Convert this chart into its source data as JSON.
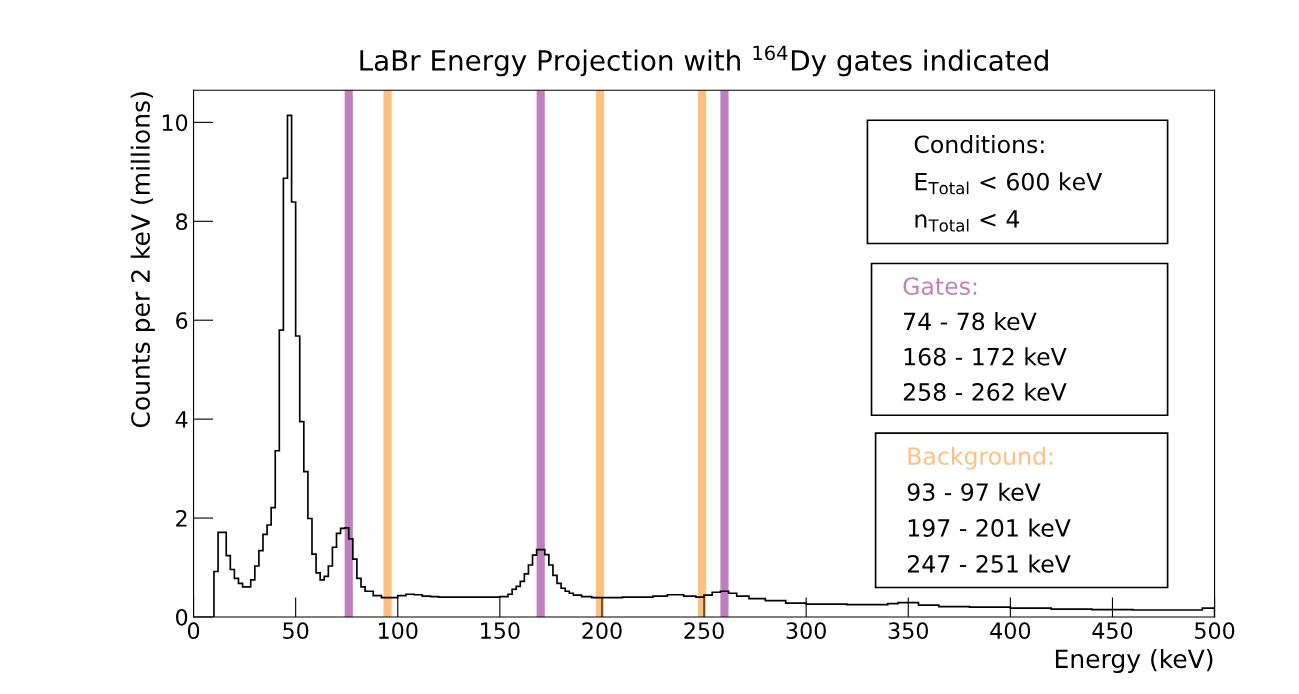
{
  "chart_data": {
    "type": "histogram",
    "title": "LaBr Energy Projection with $^{164}$Dy gates indicated",
    "xlabel": "Energy (keV)",
    "ylabel": "Counts per 2 keV (millions)",
    "bins": [
      10,
      12,
      14,
      16,
      18,
      20,
      22,
      24,
      26,
      28,
      30,
      32,
      34,
      36,
      38,
      40,
      42,
      44,
      46,
      48,
      50,
      52,
      54,
      56,
      58,
      60,
      62,
      64,
      66,
      68,
      70,
      72,
      74,
      76,
      78,
      80,
      82,
      84,
      88,
      92,
      96,
      100,
      104,
      108,
      112,
      116,
      120,
      130,
      140,
      150,
      154,
      156,
      158,
      160,
      162,
      164,
      166,
      168,
      170,
      172,
      174,
      176,
      178,
      180,
      182,
      184,
      186,
      190,
      195,
      210,
      225,
      232,
      240,
      246,
      250,
      254,
      258,
      262,
      266,
      272,
      280,
      290,
      300,
      320,
      340,
      345,
      355,
      365,
      380,
      400,
      420,
      440,
      460,
      480,
      494,
      500
    ],
    "values": [
      0.92,
      1.71,
      1.71,
      1.24,
      0.96,
      0.78,
      0.68,
      0.61,
      0.61,
      0.75,
      1.03,
      1.34,
      1.67,
      1.86,
      2.21,
      3.36,
      5.8,
      8.87,
      10.14,
      8.39,
      5.68,
      3.95,
      2.94,
      1.99,
      1.27,
      0.89,
      0.75,
      0.82,
      1.03,
      1.41,
      1.69,
      1.79,
      1.8,
      1.58,
      1.17,
      0.78,
      0.61,
      0.52,
      0.43,
      0.39,
      0.39,
      0.43,
      0.46,
      0.45,
      0.42,
      0.41,
      0.4,
      0.4,
      0.4,
      0.41,
      0.46,
      0.56,
      0.62,
      0.72,
      0.87,
      1.05,
      1.25,
      1.36,
      1.36,
      1.26,
      1.05,
      0.84,
      0.68,
      0.58,
      0.52,
      0.48,
      0.44,
      0.41,
      0.39,
      0.4,
      0.42,
      0.45,
      0.42,
      0.4,
      0.44,
      0.5,
      0.52,
      0.48,
      0.42,
      0.37,
      0.33,
      0.28,
      0.26,
      0.25,
      0.27,
      0.29,
      0.24,
      0.21,
      0.2,
      0.18,
      0.16,
      0.15,
      0.14,
      0.14,
      0.18
    ],
    "color": "#000000",
    "xlim": [
      0,
      500
    ],
    "xticks": [
      0,
      50,
      100,
      150,
      200,
      250,
      300,
      350,
      400,
      450,
      500
    ],
    "ylim": [
      0,
      10.65
    ],
    "yticks": [
      0,
      2,
      4,
      6,
      8,
      10
    ],
    "bands": [
      {
        "axis": "x",
        "from": 74,
        "to": 78,
        "color": "#bf7fbf"
      },
      {
        "axis": "x",
        "from": 168,
        "to": 172,
        "color": "#bf7fbf"
      },
      {
        "axis": "x",
        "from": 258,
        "to": 262,
        "color": "#bf7fbf"
      },
      {
        "axis": "x",
        "from": 93,
        "to": 97,
        "color": "#ffbf7f"
      },
      {
        "axis": "x",
        "from": 197,
        "to": 201,
        "color": "#ffbf7f"
      },
      {
        "axis": "x",
        "from": 247,
        "to": 251,
        "color": "#ffbf7f"
      }
    ],
    "annotations": [
      "Conditions:\nE$_{Total}$ < 600 keV\nn$_{Total}$ < 4",
      "Gates:\n74 - 78 keV\n168 - 172 keV\n258 - 262 keV",
      "Background:\n93 - 97 keV\n197 - 201 keV\n247 - 251 keV"
    ],
    "grid": false,
    "legend": false
  }
}
